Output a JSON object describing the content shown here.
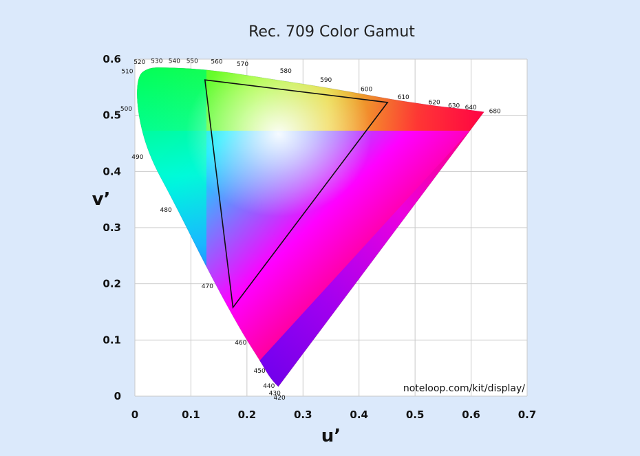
{
  "chart_data": {
    "type": "scatter",
    "title": "Rec. 709 Color Gamut",
    "xlabel": "u’",
    "ylabel": "v’",
    "xlim": [
      0,
      0.7
    ],
    "ylim": [
      0,
      0.6
    ],
    "x_ticks": [
      "0",
      "0.1",
      "0.2",
      "0.3",
      "0.4",
      "0.5",
      "0.6",
      "0.7"
    ],
    "y_ticks": [
      "0",
      "0.1",
      "0.2",
      "0.3",
      "0.4",
      "0.5",
      "0.6"
    ],
    "grid": true,
    "credit": "noteloop.com/kit/display/",
    "spectral_locus": [
      {
        "nm": "420",
        "u": 0.256,
        "v": 0.017
      },
      {
        "nm": "430",
        "u": 0.248,
        "v": 0.025
      },
      {
        "nm": "440",
        "u": 0.238,
        "v": 0.038
      },
      {
        "nm": "450",
        "u": 0.222,
        "v": 0.065
      },
      {
        "nm": "460",
        "u": 0.19,
        "v": 0.115
      },
      {
        "nm": "470",
        "u": 0.135,
        "v": 0.215
      },
      {
        "nm": "480",
        "u": 0.07,
        "v": 0.345
      },
      {
        "nm": "490",
        "u": 0.024,
        "v": 0.43
      },
      {
        "nm": "500",
        "u": 0.004,
        "v": 0.508
      },
      {
        "nm": "510",
        "u": 0.004,
        "v": 0.57
      },
      {
        "nm": "520",
        "u": 0.025,
        "v": 0.585
      },
      {
        "nm": "530",
        "u": 0.055,
        "v": 0.585
      },
      {
        "nm": "540",
        "u": 0.085,
        "v": 0.584
      },
      {
        "nm": "550",
        "u": 0.115,
        "v": 0.582
      },
      {
        "nm": "560",
        "u": 0.155,
        "v": 0.578
      },
      {
        "nm": "570",
        "u": 0.195,
        "v": 0.572
      },
      {
        "nm": "580",
        "u": 0.26,
        "v": 0.562
      },
      {
        "nm": "590",
        "u": 0.325,
        "v": 0.552
      },
      {
        "nm": "600",
        "u": 0.395,
        "v": 0.54
      },
      {
        "nm": "610",
        "u": 0.46,
        "v": 0.528
      },
      {
        "nm": "620",
        "u": 0.515,
        "v": 0.52
      },
      {
        "nm": "630",
        "u": 0.55,
        "v": 0.515
      },
      {
        "nm": "640",
        "u": 0.58,
        "v": 0.512
      },
      {
        "nm": "680",
        "u": 0.623,
        "v": 0.506
      }
    ],
    "series": [
      {
        "name": "",
        "points": [
          {
            "u": 0.451,
            "v": 0.523
          },
          {
            "u": 0.125,
            "v": 0.563
          },
          {
            "u": 0.175,
            "v": 0.158
          }
        ]
      }
    ]
  }
}
